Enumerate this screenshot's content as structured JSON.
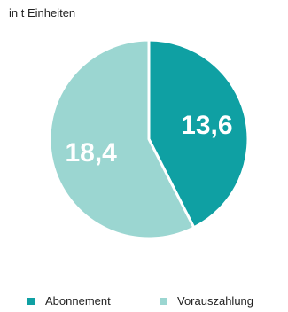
{
  "chart_data": {
    "type": "pie",
    "title": "",
    "subtitle": "in t Einheiten",
    "categories": [
      "Abonnement",
      "Vorauszahlung"
    ],
    "values": [
      13.6,
      18.4
    ],
    "value_labels": [
      "13,6",
      "18,4"
    ],
    "colors": [
      "#0fa0a3",
      "#9bd6d1"
    ],
    "label_color": "#ffffff",
    "legend_position": "bottom"
  }
}
